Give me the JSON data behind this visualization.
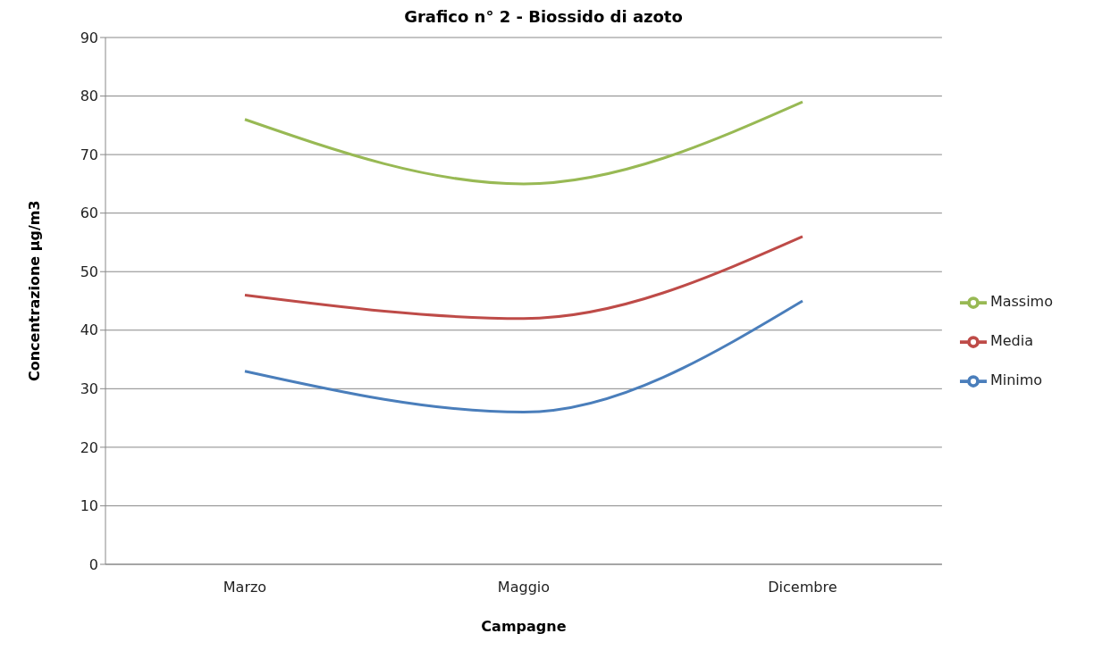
{
  "chart_data": {
    "type": "line",
    "title": "Grafico n° 2 - Biossido di azoto",
    "xlabel": "Campagne",
    "ylabel": "Concentrazione µg/m3",
    "categories": [
      "Marzo",
      "Maggio",
      "Dicembre"
    ],
    "series": [
      {
        "name": "Minimo",
        "color": "#4a7ebb",
        "values": [
          33,
          26,
          45
        ]
      },
      {
        "name": "Media",
        "color": "#be4b48",
        "values": [
          46,
          42,
          56
        ]
      },
      {
        "name": "Massimo",
        "color": "#98b954",
        "values": [
          76,
          65,
          79
        ]
      }
    ],
    "ylim": [
      0,
      90
    ],
    "yticks": [
      0,
      10,
      20,
      30,
      40,
      50,
      60,
      70,
      80,
      90
    ],
    "grid": "y",
    "legend": "right",
    "marker": "none",
    "line_style": "solid"
  }
}
